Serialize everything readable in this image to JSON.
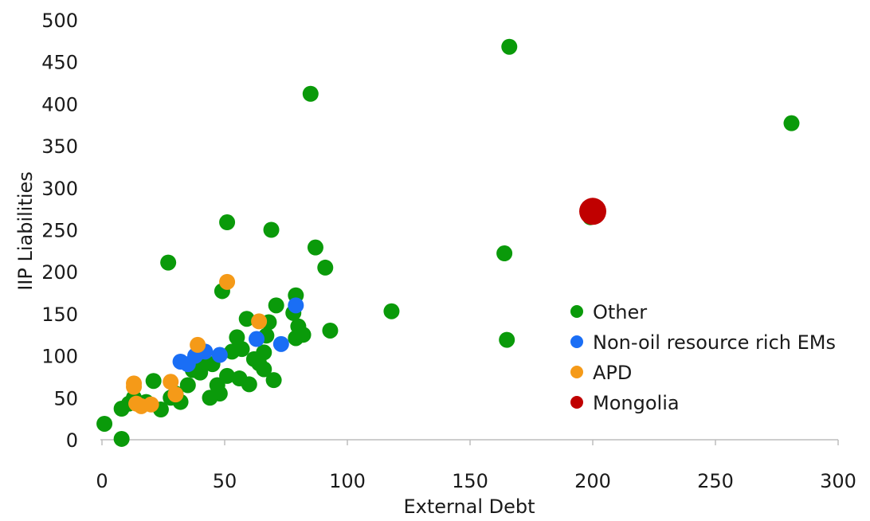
{
  "chart_data": {
    "type": "scatter",
    "title": "",
    "xlabel": "External Debt",
    "ylabel": "IIP Liabilities",
    "xlim": [
      0,
      300
    ],
    "ylim": [
      0,
      500
    ],
    "xticks": [
      "0",
      "50",
      "100",
      "150",
      "200",
      "250",
      "300"
    ],
    "yticks": [
      "0",
      "50",
      "100",
      "150",
      "200",
      "250",
      "300",
      "350",
      "400",
      "450",
      "500"
    ],
    "grid": false,
    "legend_position": "right",
    "series": [
      {
        "name": "Other",
        "color": "#0a9a0a",
        "points": [
          [
            1,
            19
          ],
          [
            8,
            37
          ],
          [
            8,
            1
          ],
          [
            11,
            43
          ],
          [
            13,
            50
          ],
          [
            18,
            45
          ],
          [
            21,
            70
          ],
          [
            24,
            36
          ],
          [
            27,
            211
          ],
          [
            28,
            50
          ],
          [
            30,
            55
          ],
          [
            32,
            45
          ],
          [
            35,
            65
          ],
          [
            37,
            83
          ],
          [
            40,
            80
          ],
          [
            42,
            93
          ],
          [
            44,
            50
          ],
          [
            45,
            90
          ],
          [
            47,
            65
          ],
          [
            48,
            55
          ],
          [
            49,
            177
          ],
          [
            51,
            76
          ],
          [
            51,
            259
          ],
          [
            53,
            105
          ],
          [
            55,
            122
          ],
          [
            56,
            73
          ],
          [
            57,
            108
          ],
          [
            59,
            144
          ],
          [
            60,
            66
          ],
          [
            62,
            96
          ],
          [
            64,
            91
          ],
          [
            66,
            104
          ],
          [
            66,
            84
          ],
          [
            67,
            124
          ],
          [
            68,
            140
          ],
          [
            69,
            250
          ],
          [
            70,
            71
          ],
          [
            71,
            160
          ],
          [
            78,
            151
          ],
          [
            79,
            172
          ],
          [
            79,
            121
          ],
          [
            80,
            135
          ],
          [
            82,
            125
          ],
          [
            85,
            412
          ],
          [
            87,
            229
          ],
          [
            91,
            205
          ],
          [
            93,
            130
          ],
          [
            118,
            153
          ],
          [
            164,
            222
          ],
          [
            165,
            119
          ],
          [
            166,
            468
          ],
          [
            199,
            265
          ],
          [
            281,
            377
          ]
        ]
      },
      {
        "name": "Non-oil resource rich EMs",
        "color": "#1a6ef5",
        "points": [
          [
            32,
            93
          ],
          [
            35,
            90
          ],
          [
            38,
            100
          ],
          [
            42,
            105
          ],
          [
            48,
            101
          ],
          [
            63,
            120
          ],
          [
            73,
            114
          ],
          [
            79,
            160
          ]
        ]
      },
      {
        "name": "APD",
        "color": "#f59a18",
        "points": [
          [
            13,
            67
          ],
          [
            13,
            63
          ],
          [
            14,
            43
          ],
          [
            16,
            40
          ],
          [
            20,
            42
          ],
          [
            28,
            69
          ],
          [
            30,
            54
          ],
          [
            39,
            113
          ],
          [
            51,
            188
          ],
          [
            64,
            141
          ]
        ]
      },
      {
        "name": "Mongolia",
        "color": "#c00000",
        "points": [
          [
            200,
            272
          ]
        ]
      }
    ]
  }
}
